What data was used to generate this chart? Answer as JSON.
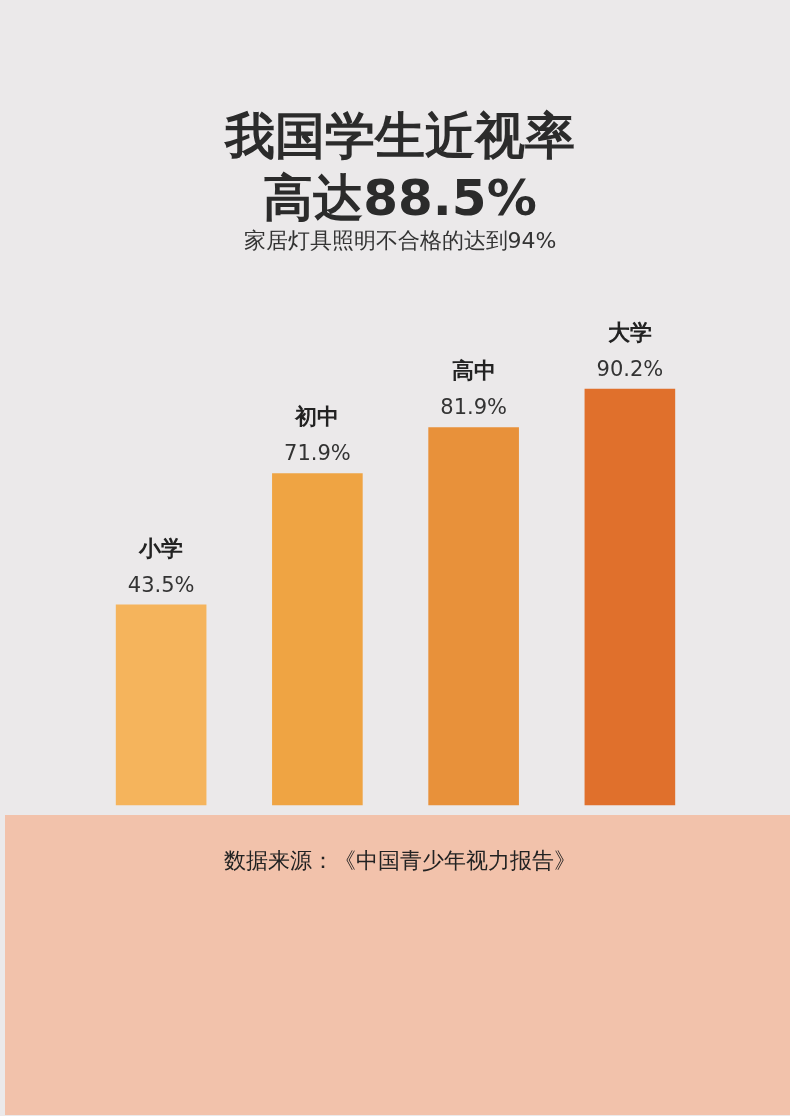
{
  "chart_data": {
    "type": "bar",
    "title": "我国学生近视率高达88.5%",
    "subtitle": "家居灯具照明不合格的达到94%",
    "categories": [
      "小学",
      "初中",
      "高中",
      "大学"
    ],
    "values": [
      43.5,
      71.9,
      81.9,
      90.2
    ],
    "value_labels": [
      "43.5%",
      "71.9%",
      "81.9%",
      "90.2%"
    ],
    "colors": [
      "#f5b45c",
      "#efa443",
      "#e8913a",
      "#e0702c"
    ],
    "annotations": [
      "数据来源：《中国青少年视力报告》"
    ]
  }
}
